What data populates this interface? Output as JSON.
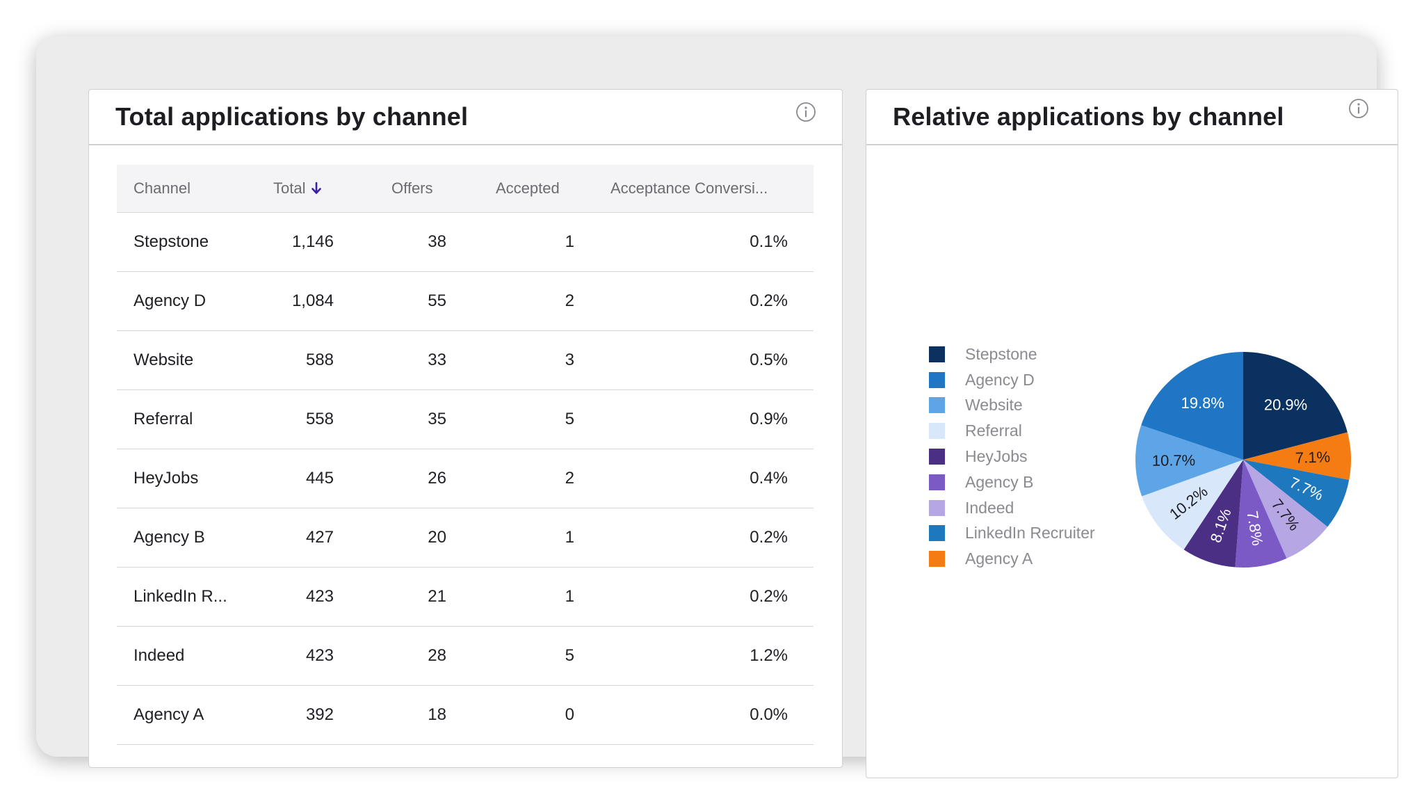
{
  "left_panel": {
    "title": "Total applications by channel",
    "info_icon": "info-circle-icon",
    "columns": {
      "channel": "Channel",
      "total": "Total",
      "offers": "Offers",
      "accepted": "Accepted",
      "conversion": "Acceptance Conversi..."
    },
    "sort_icon": "arrow-down-icon",
    "sort_color": "#3a1fa8",
    "rows": [
      {
        "channel": "Stepstone",
        "total": "1,146",
        "offers": "38",
        "accepted": "1",
        "conversion": "0.1%"
      },
      {
        "channel": "Agency D",
        "total": "1,084",
        "offers": "55",
        "accepted": "2",
        "conversion": "0.2%"
      },
      {
        "channel": "Website",
        "total": "588",
        "offers": "33",
        "accepted": "3",
        "conversion": "0.5%"
      },
      {
        "channel": "Referral",
        "total": "558",
        "offers": "35",
        "accepted": "5",
        "conversion": "0.9%"
      },
      {
        "channel": "HeyJobs",
        "total": "445",
        "offers": "26",
        "accepted": "2",
        "conversion": "0.4%"
      },
      {
        "channel": "Agency B",
        "total": "427",
        "offers": "20",
        "accepted": "1",
        "conversion": "0.2%"
      },
      {
        "channel": "LinkedIn R...",
        "total": "423",
        "offers": "21",
        "accepted": "1",
        "conversion": "0.2%"
      },
      {
        "channel": "Indeed",
        "total": "423",
        "offers": "28",
        "accepted": "5",
        "conversion": "1.2%"
      },
      {
        "channel": "Agency A",
        "total": "392",
        "offers": "18",
        "accepted": "0",
        "conversion": "0.0%"
      }
    ]
  },
  "right_panel": {
    "title": "Relative applications by channel",
    "info_icon": "info-circle-icon"
  },
  "chart_data": {
    "type": "pie",
    "legend_position": "left",
    "slices": [
      {
        "name": "Stepstone",
        "value": 20.9,
        "label": "20.9%",
        "color": "#0b3160",
        "label_color": "#ffffff"
      },
      {
        "name": "Agency A",
        "value": 7.1,
        "label": "7.1%",
        "color": "#f57c12",
        "label_color": "#1d1d22"
      },
      {
        "name": "LinkedIn Recruiter",
        "value": 7.7,
        "label": "7.7%",
        "color": "#1e78bd",
        "label_color": "#ffffff"
      },
      {
        "name": "Indeed",
        "value": 7.7,
        "label": "7.7%",
        "color": "#b7a6e4",
        "label_color": "#1d1d22"
      },
      {
        "name": "Agency B",
        "value": 7.8,
        "label": "7.8%",
        "color": "#7b5ac6",
        "label_color": "#ffffff"
      },
      {
        "name": "HeyJobs",
        "value": 8.1,
        "label": "8.1%",
        "color": "#4a2f84",
        "label_color": "#ffffff"
      },
      {
        "name": "Referral",
        "value": 10.2,
        "label": "10.2%",
        "color": "#d8e8fa",
        "label_color": "#1d1d22"
      },
      {
        "name": "Website",
        "value": 10.7,
        "label": "10.7%",
        "color": "#5ea5e8",
        "label_color": "#1d1d22"
      },
      {
        "name": "Agency D",
        "value": 19.8,
        "label": "19.8%",
        "color": "#1f76c5",
        "label_color": "#ffffff"
      }
    ],
    "legend": [
      {
        "name": "Stepstone",
        "color": "#0b3160"
      },
      {
        "name": "Agency D",
        "color": "#1f76c5"
      },
      {
        "name": "Website",
        "color": "#5ea5e8"
      },
      {
        "name": "Referral",
        "color": "#d8e8fa"
      },
      {
        "name": "HeyJobs",
        "color": "#4a2f84"
      },
      {
        "name": "Agency B",
        "color": "#7b5ac6"
      },
      {
        "name": "Indeed",
        "color": "#b7a6e4"
      },
      {
        "name": "LinkedIn Recruiter",
        "color": "#1e78bd"
      },
      {
        "name": "Agency A",
        "color": "#f57c12"
      }
    ]
  }
}
